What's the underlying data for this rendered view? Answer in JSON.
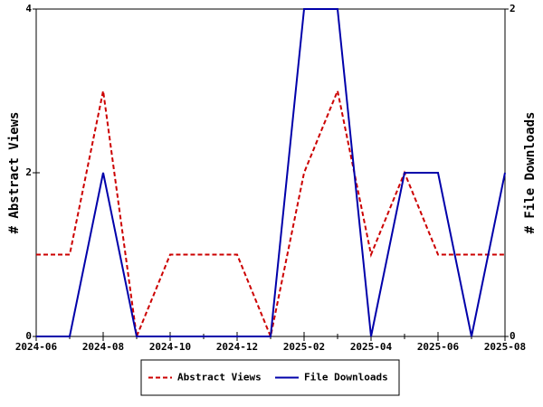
{
  "chart_data": {
    "type": "line",
    "categories": [
      "2024-06",
      null,
      "2024-08",
      null,
      "2024-10",
      null,
      "2024-12",
      null,
      "2025-02",
      null,
      "2025-04",
      null,
      "2025-06",
      null,
      "2025-08"
    ],
    "ylabel": "# Abstract Views",
    "y2label": "# File Downloads",
    "ylim": [
      0,
      4
    ],
    "yticks": [
      0,
      2,
      4
    ],
    "y2lim": [
      0,
      2
    ],
    "y2ticks": [
      0,
      2
    ],
    "legend": "bottom",
    "series": [
      {
        "name": "Abstract Views",
        "color": "#cc0000",
        "dash": true,
        "axis": "y",
        "values": [
          1,
          1,
          3,
          0,
          1,
          1,
          1,
          0,
          2,
          3,
          1,
          2,
          1,
          1,
          1
        ]
      },
      {
        "name": "File Downloads",
        "color": "#0000aa",
        "dash": false,
        "axis": "y2",
        "values": [
          0,
          0,
          1,
          0,
          0,
          0,
          0,
          0,
          2,
          2,
          0,
          1,
          1,
          0,
          1
        ]
      }
    ]
  }
}
